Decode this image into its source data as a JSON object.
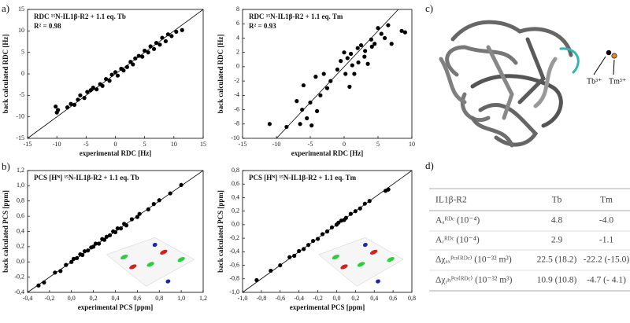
{
  "chart_data": [
    {
      "type": "scatter",
      "title": "RDC ¹⁵N-IL1β-R2 + 1.1 eq. Tb",
      "annotation": "R² = 0.98",
      "xlabel": "experimental RDC [Hz]",
      "ylabel": "back calculated RDC [Hz]",
      "color": "#000000",
      "xlim": [
        -15,
        15
      ],
      "ylim": [
        -15,
        15
      ],
      "xticks": [
        -15,
        -10,
        -5,
        0,
        5,
        10,
        15
      ],
      "yticks": [
        -15,
        -10,
        -5,
        0,
        5,
        10,
        15
      ],
      "x": [
        -10.2,
        -10,
        -9.8,
        -8.2,
        -7.6,
        -7,
        -6.4,
        -6,
        -5.3,
        -4.8,
        -4.2,
        -3.8,
        -3.2,
        -2.6,
        -2.2,
        -1.6,
        -1,
        -0.6,
        0,
        0.4,
        1,
        1.4,
        2,
        2.6,
        3,
        3.4,
        4,
        4.6,
        5,
        5.6,
        6,
        6.6,
        7,
        7.6,
        8,
        8.6,
        9,
        9.6,
        10.4,
        11.4
      ],
      "values": [
        -7.6,
        -9,
        -8.4,
        -7.8,
        -7,
        -7.2,
        -6,
        -5,
        -5.6,
        -4.2,
        -3.8,
        -3.2,
        -3.6,
        -2.4,
        -2.8,
        -1.2,
        -1.6,
        -0.2,
        0.4,
        -0.4,
        1.2,
        0.8,
        1.6,
        2.8,
        2.2,
        3.6,
        4.2,
        4,
        5.4,
        5,
        6.4,
        5.8,
        7.2,
        6.8,
        8.4,
        7.6,
        9.2,
        8.8,
        9.8,
        10.2
      ]
    },
    {
      "type": "scatter",
      "title": "RDC ¹⁵N-IL1β-R2 + 1.1 eq. Tm",
      "annotation": "R² = 0.93",
      "xlabel": "experimental RDC [Hz]",
      "ylabel": "back calculated RDC [Hz]",
      "color": "#000000",
      "xlim": [
        -15,
        10
      ],
      "ylim": [
        -10,
        8
      ],
      "xticks": [
        -15,
        -10,
        -5,
        0,
        5,
        10
      ],
      "yticks": [
        -10,
        -8,
        -6,
        -4,
        -2,
        0,
        2,
        4,
        6,
        8
      ],
      "x": [
        -11,
        -8.5,
        -7,
        -6.5,
        -6.2,
        -6,
        -5.5,
        -5,
        -4.8,
        -4.2,
        -4,
        -3.5,
        -3,
        -2.5,
        -2,
        -1,
        -0.5,
        0,
        0.2,
        0.5,
        0.8,
        1,
        1.2,
        1.5,
        2,
        2.1,
        2.5,
        3,
        3.1,
        3.5,
        4,
        4.1,
        4.5,
        5,
        5.5,
        6,
        6.5,
        7,
        8.5,
        9
      ],
      "values": [
        -8,
        -8.4,
        -4.8,
        -8,
        -6,
        -2.6,
        -7.2,
        -5,
        -8.2,
        -1.4,
        -6.2,
        -4,
        -1,
        -3,
        -2,
        -0.4,
        0.8,
        2,
        -1,
        1.2,
        -2.8,
        1.8,
        0.2,
        -1,
        2.6,
        0.6,
        3,
        1.4,
        2.2,
        0.4,
        3.8,
        2.8,
        3.2,
        5.4,
        4.6,
        4,
        5.8,
        3.2,
        5,
        4.8
      ]
    },
    {
      "type": "scatter",
      "title": "PCS [Hᴺ] ¹⁵N-IL1β-R2 + 1.1 eq. Tb",
      "xlabel": "experimental PCS [ppm]",
      "ylabel": "back calculated PCS [ppm]",
      "color": "#000000",
      "xlim": [
        -0.4,
        1.2
      ],
      "ylim": [
        -0.4,
        1.2
      ],
      "xticks": [
        {
          "value": -0.4,
          "label": "-0,4"
        },
        {
          "value": -0.2,
          "label": "-0,2"
        },
        {
          "value": 0,
          "label": "0,0"
        },
        {
          "value": 0.2,
          "label": "0,2"
        },
        {
          "value": 0.4,
          "label": "0,4"
        },
        {
          "value": 0.6,
          "label": "0,6"
        },
        {
          "value": 0.8,
          "label": "0,8"
        },
        {
          "value": 1.0,
          "label": "1,0"
        },
        {
          "value": 1.2,
          "label": "1,2"
        }
      ],
      "yticks": [
        {
          "value": -0.4,
          "label": "-0,4"
        },
        {
          "value": -0.2,
          "label": "-0,2"
        },
        {
          "value": 0,
          "label": "0,0"
        },
        {
          "value": 0.2,
          "label": "0,2"
        },
        {
          "value": 0.4,
          "label": "0,4"
        },
        {
          "value": 0.6,
          "label": "0,6"
        },
        {
          "value": 0.8,
          "label": "0,8"
        },
        {
          "value": 1.0,
          "label": "1,0"
        },
        {
          "value": 1.2,
          "label": "1,2"
        }
      ],
      "x": [
        -0.3,
        -0.25,
        -0.15,
        -0.1,
        -0.05,
        0,
        0.02,
        0.05,
        0.08,
        0.1,
        0.12,
        0.15,
        0.18,
        0.2,
        0.22,
        0.25,
        0.28,
        0.3,
        0.32,
        0.35,
        0.38,
        0.4,
        0.42,
        0.45,
        0.48,
        0.5,
        0.55,
        0.6,
        0.62,
        0.7,
        0.75,
        0.8,
        0.9,
        1.0
      ],
      "values": [
        -0.31,
        -0.27,
        -0.14,
        -0.12,
        -0.04,
        0.0,
        0.04,
        0.05,
        0.1,
        0.09,
        0.14,
        0.15,
        0.19,
        0.2,
        0.24,
        0.24,
        0.3,
        0.29,
        0.33,
        0.35,
        0.4,
        0.39,
        0.44,
        0.44,
        0.5,
        0.48,
        0.56,
        0.59,
        0.63,
        0.69,
        0.76,
        0.81,
        0.9,
        1.01
      ]
    },
    {
      "type": "scatter",
      "title": "PCS [Hᴺ] ¹⁵N-IL1β-R2 + 1.1 eq. Tm",
      "xlabel": "experimental PCS [ppm]",
      "ylabel": "back calculated PCS [ppm]",
      "color": "#000000",
      "xlim": [
        -1.0,
        0.8
      ],
      "ylim": [
        -1.0,
        0.8
      ],
      "xticks": [
        {
          "value": -1.0,
          "label": "-1,0"
        },
        {
          "value": -0.8,
          "label": "-0,8"
        },
        {
          "value": -0.6,
          "label": "-0,6"
        },
        {
          "value": -0.4,
          "label": "-0,4"
        },
        {
          "value": -0.2,
          "label": "-0,2"
        },
        {
          "value": 0,
          "label": "0,0"
        },
        {
          "value": 0.2,
          "label": "0,2"
        },
        {
          "value": 0.4,
          "label": "0,4"
        },
        {
          "value": 0.6,
          "label": "0,6"
        },
        {
          "value": 0.8,
          "label": "0,8"
        }
      ],
      "yticks": [
        {
          "value": -1.0,
          "label": "-1,0"
        },
        {
          "value": -0.8,
          "label": "-0,8"
        },
        {
          "value": -0.6,
          "label": "-0,6"
        },
        {
          "value": -0.4,
          "label": "-0,4"
        },
        {
          "value": -0.2,
          "label": "-0,2"
        },
        {
          "value": 0,
          "label": "0,0"
        },
        {
          "value": 0.2,
          "label": "0,2"
        },
        {
          "value": 0.4,
          "label": "0,4"
        },
        {
          "value": 0.6,
          "label": "0,6"
        },
        {
          "value": 0.8,
          "label": "0,8"
        }
      ],
      "x": [
        -0.85,
        -0.7,
        -0.6,
        -0.5,
        -0.45,
        -0.4,
        -0.35,
        -0.3,
        -0.25,
        -0.2,
        -0.15,
        -0.1,
        -0.05,
        0,
        0.02,
        0.05,
        0.08,
        0.1,
        0.15,
        0.2,
        0.25,
        0.3,
        0.35,
        0.52,
        0.55
      ],
      "values": [
        -0.82,
        -0.68,
        -0.6,
        -0.48,
        -0.46,
        -0.39,
        -0.36,
        -0.3,
        -0.24,
        -0.21,
        -0.14,
        -0.1,
        -0.04,
        0.0,
        0.03,
        0.06,
        0.07,
        0.1,
        0.16,
        0.2,
        0.24,
        0.31,
        0.35,
        0.5,
        0.52
      ]
    }
  ],
  "panel_labels": [
    "a)",
    "b)",
    "c)",
    "d)"
  ],
  "ion_labels": [
    "Tb³⁺",
    "Tm³⁺"
  ],
  "table": {
    "header": [
      "IL1β-R2",
      "Tb",
      "Tm"
    ],
    "rows": [
      [
        "Aₐᴿᴰᶜ (10⁻⁴)",
        "4.8",
        "-4.0"
      ],
      [
        "Aᵣᴿᴰᶜ (10⁻⁴)",
        "2.9",
        "-1.1"
      ],
      [
        "Δχₐₓᴾᶜˢ⁽ᴿᴰᶜ⁾ (10⁻³² m³)",
        "22.5 (18.2)",
        "-22.2 (-15.0)"
      ],
      [
        "Δχᵣₕᴾᶜˢ⁽ᴿᴰᶜ⁾ (10⁻³² m³)",
        "10.9 (10.8)",
        "-4.7 (- 4.1)"
      ]
    ]
  }
}
